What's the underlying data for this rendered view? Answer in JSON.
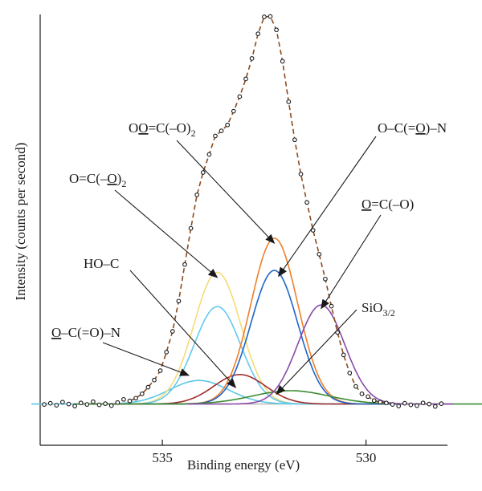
{
  "chart_data": {
    "type": "line",
    "title": "",
    "xlabel": "Binding energy (eV)",
    "ylabel": "Intensity (counts per second)",
    "xlim": [
      538,
      528
    ],
    "x_reversed": true,
    "ylim": [
      0,
      100
    ],
    "y_ticks_shown": false,
    "x_ticks": [
      535,
      530
    ],
    "x_tick_labels": [
      "535",
      "530"
    ],
    "grid": false,
    "legend": "none",
    "background_level": 1.3,
    "components": [
      {
        "id": "O-C(=O)-N",
        "center": 534.1,
        "height": 6.0,
        "fwhm": 1.7,
        "color": "#5bc8e6"
      },
      {
        "id": "O=C(-O)2 bridging",
        "center": 533.65,
        "height": 33.5,
        "fwhm": 1.35,
        "color": "#f5dc78"
      },
      {
        "id": "O=C(-O)2 sky",
        "center": 533.65,
        "height": 24.8,
        "fwhm": 1.35,
        "color": "#66c8ee"
      },
      {
        "id": "HO-C",
        "center": 533.1,
        "height": 7.5,
        "fwhm": 1.5,
        "color": "#a02c2c"
      },
      {
        "id": "O=C(-O)2 carbonyl",
        "center": 532.25,
        "height": 42.2,
        "fwhm": 1.35,
        "color": "#f07f2a"
      },
      {
        "id": "O-C(=O)-N carbonyl",
        "center": 532.25,
        "height": 34.0,
        "fwhm": 1.35,
        "color": "#1f65c8"
      },
      {
        "id": "SiO3/2",
        "center": 531.85,
        "height": 3.4,
        "fwhm": 2.2,
        "color": "#3c8c32"
      },
      {
        "id": "O=C(-O)",
        "center": 531.1,
        "height": 25.2,
        "fwhm": 1.35,
        "color": "#8a4aa8"
      }
    ],
    "envelope_color": "#8b4a1e",
    "data_points": {
      "x": [
        537.9,
        537.75,
        537.6,
        537.45,
        537.3,
        537.15,
        537.0,
        536.85,
        536.7,
        536.55,
        536.4,
        536.25,
        536.1,
        535.95,
        535.8,
        535.65,
        535.5,
        535.35,
        535.2,
        535.05,
        534.9,
        534.75,
        534.6,
        534.45,
        534.3,
        534.15,
        534.0,
        533.85,
        533.7,
        533.55,
        533.4,
        533.25,
        533.1,
        532.95,
        532.8,
        532.65,
        532.5,
        532.35,
        532.2,
        532.05,
        531.9,
        531.75,
        531.6,
        531.45,
        531.3,
        531.15,
        531.0,
        530.85,
        530.7,
        530.55,
        530.4,
        530.25,
        530.1,
        529.95,
        529.8,
        529.65,
        529.5,
        529.35,
        529.2,
        529.05,
        528.9,
        528.75,
        528.6,
        528.45,
        528.3,
        528.15
      ],
      "y": [
        1.2,
        1.5,
        1.0,
        1.8,
        1.3,
        0.8,
        1.6,
        1.2,
        1.9,
        1.1,
        1.4,
        0.9,
        1.7,
        2.5,
        2.1,
        2.8,
        3.9,
        5.6,
        7.4,
        9.8,
        14.5,
        19.8,
        27.5,
        36.8,
        46.0,
        54.5,
        60.2,
        64.8,
        69.5,
        70.8,
        72.3,
        75.8,
        79.5,
        84.0,
        89.2,
        95.5,
        99.8,
        99.9,
        96.5,
        88.5,
        78.2,
        68.5,
        59.8,
        52.6,
        45.5,
        39.4,
        33.1,
        26.2,
        19.5,
        13.8,
        9.2,
        5.8,
        3.9,
        3.2,
        2.2,
        1.8,
        1.6,
        1.2,
        0.8,
        1.5,
        1.1,
        0.9,
        1.6,
        1.3,
        0.7,
        1.4
      ]
    },
    "annotations": [
      {
        "text_before": "O",
        "underline": "O",
        "text_after": "=C(–O)",
        "sub": "2",
        "target": [
          532.25,
          42.2
        ]
      },
      {
        "text_before": "O–C(=",
        "underline": "O",
        "text_after": ")–N",
        "sub": "",
        "target": [
          532.15,
          33.8
        ]
      },
      {
        "text_before": "O=C(–",
        "underline": "O",
        "text_after": ")",
        "sub": "2",
        "target": [
          533.65,
          33.5
        ]
      },
      {
        "text_before": "",
        "underline": "O",
        "text_after": "=C(–O)",
        "sub": "",
        "target": [
          531.1,
          25.6
        ]
      },
      {
        "text_before": "HO–C",
        "underline": "",
        "text_after": "",
        "sub": "",
        "target": [
          533.2,
          5.5
        ]
      },
      {
        "text_before": "SiO",
        "underline": "",
        "text_after": "",
        "sub": "3/2",
        "target": [
          532.2,
          3.8
        ]
      },
      {
        "text_before": "",
        "underline": "O",
        "text_after": "–C(=O)–N",
        "sub": "",
        "target": [
          534.35,
          8.6
        ]
      }
    ]
  }
}
